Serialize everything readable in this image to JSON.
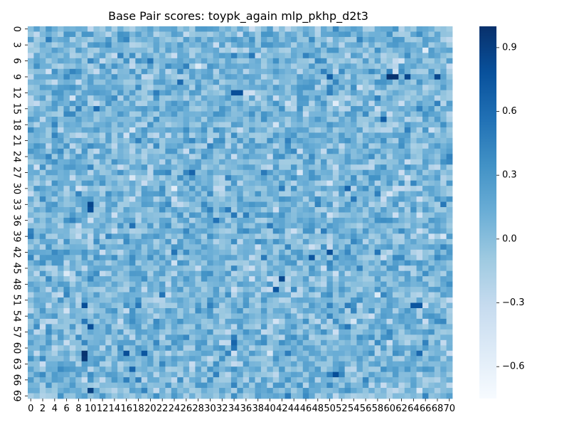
{
  "chart_data": {
    "type": "heatmap",
    "title": "Base Pair scores: toypk_again mlp_pkhp_d2t3",
    "xlabel": "",
    "ylabel": "",
    "rows": 70,
    "cols": 71,
    "x_tick_labels": [
      "0",
      "2",
      "4",
      "6",
      "8",
      "10",
      "12",
      "14",
      "16",
      "18",
      "20",
      "22",
      "24",
      "26",
      "28",
      "30",
      "32",
      "34",
      "36",
      "38",
      "40",
      "42",
      "44",
      "46",
      "48",
      "50",
      "52",
      "54",
      "56",
      "58",
      "60",
      "62",
      "64",
      "66",
      "68",
      "70"
    ],
    "y_tick_labels": [
      "0",
      "3",
      "6",
      "9",
      "12",
      "15",
      "18",
      "21",
      "24",
      "27",
      "30",
      "33",
      "36",
      "39",
      "42",
      "45",
      "48",
      "51",
      "54",
      "57",
      "60",
      "63",
      "66",
      "69"
    ],
    "colorbar": {
      "vmin": -0.75,
      "vmax": 1.0,
      "tick_values": [
        -0.6,
        -0.3,
        0.0,
        0.3,
        0.6,
        0.9
      ],
      "tick_labels": [
        "−0.6",
        "−0.3",
        "0.0",
        "0.3",
        "0.6",
        "0.9"
      ]
    },
    "colormap": "Blues",
    "colormap_stops": [
      "#f7fbff",
      "#deebf7",
      "#c6dbef",
      "#9ecae1",
      "#6baed6",
      "#4292c6",
      "#2171b5",
      "#08519c",
      "#08306b"
    ],
    "values_summary": "approx. 70x71 grid of scores, mostly between -0.4 and 0.5 (mean ~0.05), with a few strong cells near 0.9-1.0 e.g. around (row 9, cols 60-63) and (row 61, col 9)",
    "highlights": [
      {
        "row": 9,
        "col": 60,
        "value": 0.98
      },
      {
        "row": 9,
        "col": 61,
        "value": 0.98
      },
      {
        "row": 9,
        "col": 63,
        "value": 0.85
      },
      {
        "row": 9,
        "col": 68,
        "value": 0.85
      },
      {
        "row": 12,
        "col": 34,
        "value": 0.8
      },
      {
        "row": 12,
        "col": 35,
        "value": 0.8
      },
      {
        "row": 33,
        "col": 10,
        "value": 0.85
      },
      {
        "row": 34,
        "col": 10,
        "value": 0.8
      },
      {
        "row": 42,
        "col": 50,
        "value": 0.8
      },
      {
        "row": 43,
        "col": 47,
        "value": 0.75
      },
      {
        "row": 47,
        "col": 42,
        "value": 0.85
      },
      {
        "row": 49,
        "col": 41,
        "value": 0.75
      },
      {
        "row": 52,
        "col": 9,
        "value": 0.8
      },
      {
        "row": 52,
        "col": 64,
        "value": 0.75
      },
      {
        "row": 52,
        "col": 65,
        "value": 0.75
      },
      {
        "row": 56,
        "col": 10,
        "value": 0.8
      },
      {
        "row": 61,
        "col": 9,
        "value": 0.98
      },
      {
        "row": 62,
        "col": 9,
        "value": 0.95
      },
      {
        "row": 61,
        "col": 16,
        "value": 0.8
      },
      {
        "row": 61,
        "col": 19,
        "value": 0.75
      },
      {
        "row": 65,
        "col": 51,
        "value": 0.8
      },
      {
        "row": 68,
        "col": 10,
        "value": 0.9
      },
      {
        "row": 9,
        "col": 50,
        "value": 0.7
      },
      {
        "row": 17,
        "col": 59,
        "value": 0.7
      },
      {
        "row": 27,
        "col": 27,
        "value": 0.65
      },
      {
        "row": 30,
        "col": 53,
        "value": 0.65
      }
    ]
  }
}
